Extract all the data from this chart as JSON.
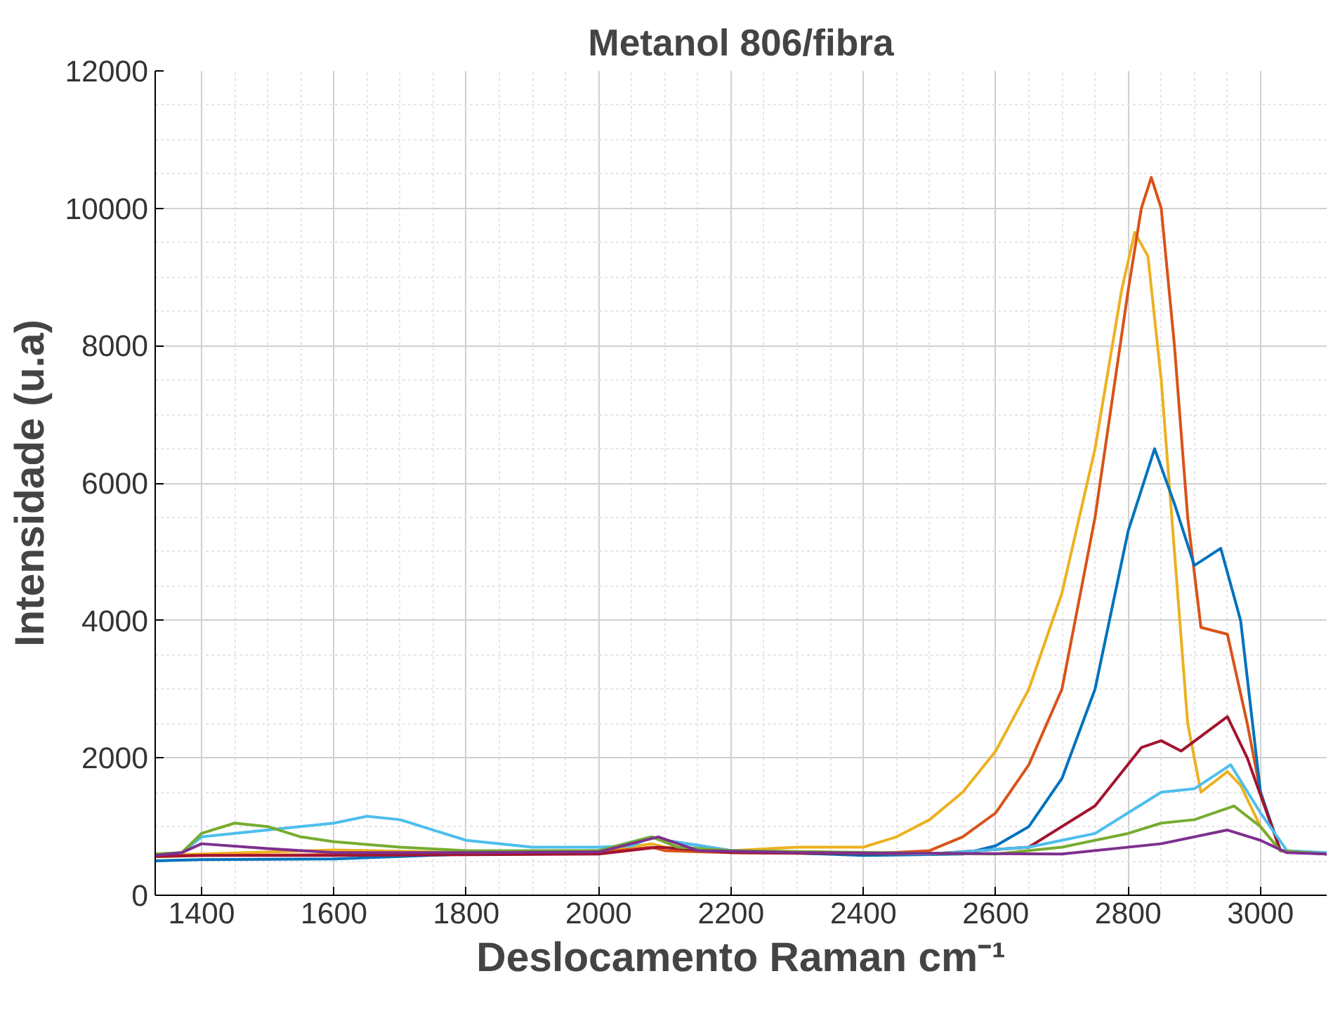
{
  "chart_data": {
    "type": "line",
    "title": "Metanol 806/fibra",
    "xlabel": "Deslocamento Raman cm⁻¹",
    "ylabel": "Intensidade (u.a)",
    "xlim": [
      1330,
      3100
    ],
    "ylim": [
      0,
      12000
    ],
    "xticks": [
      1400,
      1600,
      1800,
      2000,
      2200,
      2400,
      2600,
      2800,
      3000
    ],
    "yticks": [
      0,
      2000,
      4000,
      6000,
      8000,
      10000,
      12000
    ],
    "grid": true,
    "marker": "none",
    "line_style": "solid",
    "series": [
      {
        "color": "#edb120",
        "x": [
          1330,
          1400,
          1600,
          1800,
          2000,
          2080,
          2100,
          2200,
          2300,
          2400,
          2450,
          2500,
          2550,
          2600,
          2650,
          2700,
          2750,
          2790,
          2810,
          2830,
          2850,
          2870,
          2890,
          2910,
          2950,
          2970,
          3000,
          3030,
          3100
        ],
        "values": [
          580,
          600,
          660,
          620,
          640,
          750,
          700,
          650,
          700,
          700,
          850,
          1100,
          1500,
          2100,
          3000,
          4400,
          6500,
          8800,
          9650,
          9300,
          7500,
          5000,
          2500,
          1500,
          1800,
          1600,
          1000,
          650,
          600
        ]
      },
      {
        "color": "#d95319",
        "x": [
          1330,
          1400,
          1600,
          1800,
          2000,
          2080,
          2100,
          2200,
          2400,
          2500,
          2550,
          2600,
          2650,
          2700,
          2750,
          2800,
          2820,
          2835,
          2850,
          2870,
          2890,
          2910,
          2950,
          2980,
          3000,
          3030,
          3100
        ],
        "values": [
          560,
          580,
          590,
          600,
          620,
          700,
          650,
          620,
          600,
          650,
          850,
          1200,
          1900,
          3000,
          5500,
          8800,
          10000,
          10450,
          10000,
          8000,
          5500,
          3900,
          3800,
          2500,
          1500,
          650,
          600
        ]
      },
      {
        "color": "#0072bd",
        "x": [
          1330,
          1400,
          1600,
          1800,
          2000,
          2080,
          2100,
          2200,
          2400,
          2550,
          2600,
          2650,
          2700,
          2750,
          2800,
          2840,
          2870,
          2900,
          2940,
          2970,
          3000,
          3030,
          3100
        ],
        "values": [
          500,
          520,
          530,
          600,
          650,
          850,
          800,
          650,
          580,
          600,
          720,
          1000,
          1700,
          3000,
          5300,
          6500,
          5700,
          4800,
          5050,
          4000,
          1500,
          650,
          600
        ]
      },
      {
        "color": "#a2142f",
        "x": [
          1330,
          1400,
          1600,
          2000,
          2090,
          2200,
          2500,
          2650,
          2750,
          2820,
          2850,
          2880,
          2950,
          2980,
          3030,
          3100
        ],
        "values": [
          570,
          580,
          580,
          600,
          700,
          620,
          600,
          700,
          1300,
          2150,
          2250,
          2100,
          2600,
          2000,
          650,
          600
        ]
      },
      {
        "color": "#4dbeee",
        "x": [
          1330,
          1370,
          1400,
          1500,
          1600,
          1650,
          1700,
          1750,
          1800,
          1900,
          2000,
          2050,
          2080,
          2100,
          2200,
          2500,
          2650,
          2750,
          2850,
          2900,
          2955,
          3000,
          3040,
          3100
        ],
        "values": [
          600,
          620,
          850,
          950,
          1050,
          1150,
          1100,
          950,
          800,
          700,
          700,
          720,
          850,
          800,
          650,
          600,
          700,
          900,
          1500,
          1550,
          1900,
          1200,
          650,
          620
        ]
      },
      {
        "color": "#77ac30",
        "x": [
          1330,
          1370,
          1400,
          1450,
          1500,
          1550,
          1600,
          1700,
          1800,
          2000,
          2080,
          2120,
          2200,
          2600,
          2700,
          2800,
          2850,
          2900,
          2960,
          3000,
          3030,
          3100
        ],
        "values": [
          600,
          620,
          900,
          1050,
          1000,
          850,
          780,
          700,
          650,
          650,
          850,
          700,
          650,
          600,
          700,
          900,
          1050,
          1100,
          1300,
          1000,
          650,
          600
        ]
      },
      {
        "color": "#7e2f8e",
        "x": [
          1330,
          1370,
          1400,
          1500,
          1600,
          1800,
          2000,
          2090,
          2150,
          2300,
          2700,
          2850,
          2950,
          3000,
          3040,
          3100
        ],
        "values": [
          580,
          620,
          750,
          680,
          620,
          620,
          630,
          850,
          650,
          620,
          600,
          750,
          950,
          800,
          620,
          600
        ]
      }
    ]
  }
}
